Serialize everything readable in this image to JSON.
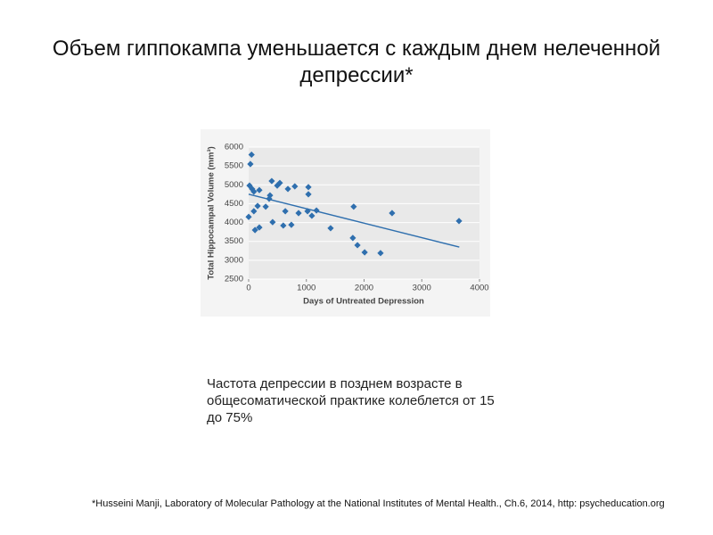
{
  "title": "Объем гиппокампа уменьшается с каждым днем нелеченной депрессии*",
  "note": "Частота депрессии в позднем возрасте в общесоматической практике колеблется от 15 до 75%",
  "footnote": "*Husseini Manji, Laboratory of Molecular Pathology at the National Institutes of Mental Health.,  Ch.6, 2014, http: psycheducation.org",
  "chart_data": {
    "type": "scatter",
    "x_label": "Days of Untreated Depression",
    "y_label": "Total Hippocampal Volume (mm³)",
    "xlim": [
      0,
      4000
    ],
    "xticks": [
      0,
      1000,
      2000,
      3000,
      4000
    ],
    "ylim": [
      2500,
      6000
    ],
    "yticks": [
      2500,
      3000,
      3500,
      4000,
      4500,
      5000,
      5500,
      6000
    ],
    "color": "#2f6fae",
    "x": [
      50,
      30,
      15,
      60,
      90,
      185,
      0,
      90,
      155,
      110,
      185,
      295,
      355,
      370,
      400,
      495,
      540,
      415,
      635,
      600,
      680,
      740,
      800,
      865,
      1020,
      1035,
      1035,
      1095,
      1175,
      1420,
      1820,
      1805,
      1885,
      2010,
      2285,
      2485,
      3645
    ],
    "y": [
      5800,
      5550,
      4980,
      4890,
      4820,
      4860,
      4150,
      4300,
      4440,
      3800,
      3870,
      4420,
      4630,
      4720,
      5100,
      4980,
      5050,
      4010,
      4300,
      3920,
      4890,
      3940,
      4960,
      4250,
      4300,
      4940,
      4750,
      4180,
      4320,
      3850,
      4420,
      3590,
      3400,
      3210,
      3190,
      4250,
      4040
    ],
    "trendline": {
      "x": [
        0,
        3650
      ],
      "y": [
        4750,
        3350
      ],
      "color": "#2f6fae"
    }
  }
}
